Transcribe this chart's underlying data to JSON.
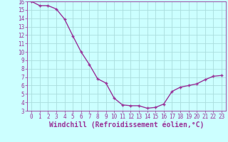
{
  "x": [
    0,
    1,
    2,
    3,
    4,
    5,
    6,
    7,
    8,
    9,
    10,
    11,
    12,
    13,
    14,
    15,
    16,
    17,
    18,
    19,
    20,
    21,
    22,
    23
  ],
  "y": [
    16.0,
    15.5,
    15.5,
    15.1,
    13.9,
    11.9,
    10.0,
    8.5,
    6.8,
    6.3,
    4.5,
    3.7,
    3.6,
    3.6,
    3.3,
    3.4,
    3.8,
    5.3,
    5.8,
    6.0,
    6.2,
    6.7,
    7.1,
    7.2
  ],
  "line_color": "#993399",
  "marker": "+",
  "bg_color": "#ccffff",
  "grid_color": "#aadddd",
  "xlabel": "Windchill (Refroidissement éolien,°C)",
  "xlabel_color": "#993399",
  "tick_color": "#993399",
  "ylim": [
    3,
    16
  ],
  "xlim": [
    0,
    23
  ],
  "yticks": [
    3,
    4,
    5,
    6,
    7,
    8,
    9,
    10,
    11,
    12,
    13,
    14,
    15,
    16
  ],
  "xticks": [
    0,
    1,
    2,
    3,
    4,
    5,
    6,
    7,
    8,
    9,
    10,
    11,
    12,
    13,
    14,
    15,
    16,
    17,
    18,
    19,
    20,
    21,
    22,
    23
  ],
  "marker_size": 3,
  "line_width": 1.0,
  "tick_fontsize": 5.5,
  "xlabel_fontsize": 7.0,
  "markeredgewidth": 1.0
}
